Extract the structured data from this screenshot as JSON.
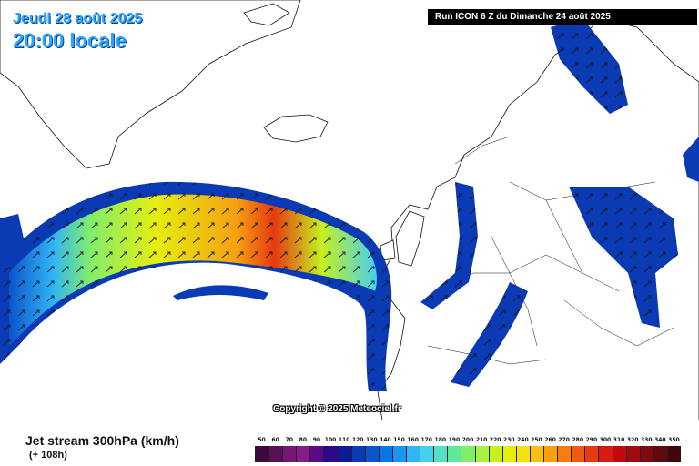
{
  "header": {
    "date": "Jeudi 28 août 2025",
    "time": "20:00 locale",
    "run": "Run ICON 6 Z du Dimanche 24 août 2025"
  },
  "copyright": "Copyright © 2025 Meteociel.fr",
  "footer": {
    "product": "Jet stream 300hPa (km/h)",
    "lead_time": "(+ 108h)"
  },
  "legend": {
    "values": [
      "50",
      "60",
      "70",
      "80",
      "90",
      "100",
      "110",
      "120",
      "130",
      "140",
      "150",
      "160",
      "170",
      "180",
      "190",
      "200",
      "210",
      "220",
      "230",
      "240",
      "250",
      "260",
      "270",
      "280",
      "290",
      "300",
      "310",
      "320",
      "330",
      "340",
      "350"
    ],
    "colors": [
      "#3d0a3d",
      "#5a0f5a",
      "#7a1575",
      "#8a1a8a",
      "#5a0a8a",
      "#2a0a8a",
      "#0a1a9a",
      "#0a3ab4",
      "#0a55cc",
      "#0a75e6",
      "#1a95f0",
      "#30b5f5",
      "#45d0f0",
      "#55e0c5",
      "#60e89a",
      "#80ee6a",
      "#a6f240",
      "#c6f020",
      "#e6ee10",
      "#f5e010",
      "#f8c010",
      "#f8a010",
      "#f57e10",
      "#f05a10",
      "#e63a10",
      "#d81a10",
      "#c00a10",
      "#a00a10",
      "#800a10",
      "#600a10",
      "#400808"
    ]
  },
  "colors": {
    "ocean_shading": "#0a3ab4",
    "title_blue": "#2ba6ff"
  }
}
